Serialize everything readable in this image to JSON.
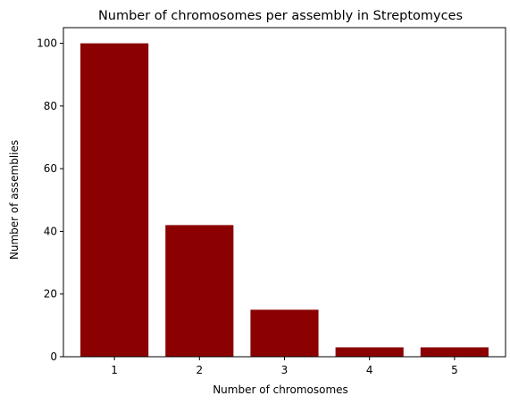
{
  "chart_data": {
    "type": "bar",
    "title": "Number of chromosomes per assembly in Streptomyces",
    "xlabel": "Number of chromosomes",
    "ylabel": "Number of assemblies",
    "categories": [
      "1",
      "2",
      "3",
      "4",
      "5"
    ],
    "values": [
      100,
      42,
      15,
      3,
      3
    ],
    "xlim": [
      0.4,
      5.6
    ],
    "ylim": [
      0,
      105
    ],
    "yticks": [
      0,
      20,
      40,
      60,
      80,
      100
    ],
    "bar_color": "#8b0000",
    "grid": false,
    "legend": "none"
  }
}
